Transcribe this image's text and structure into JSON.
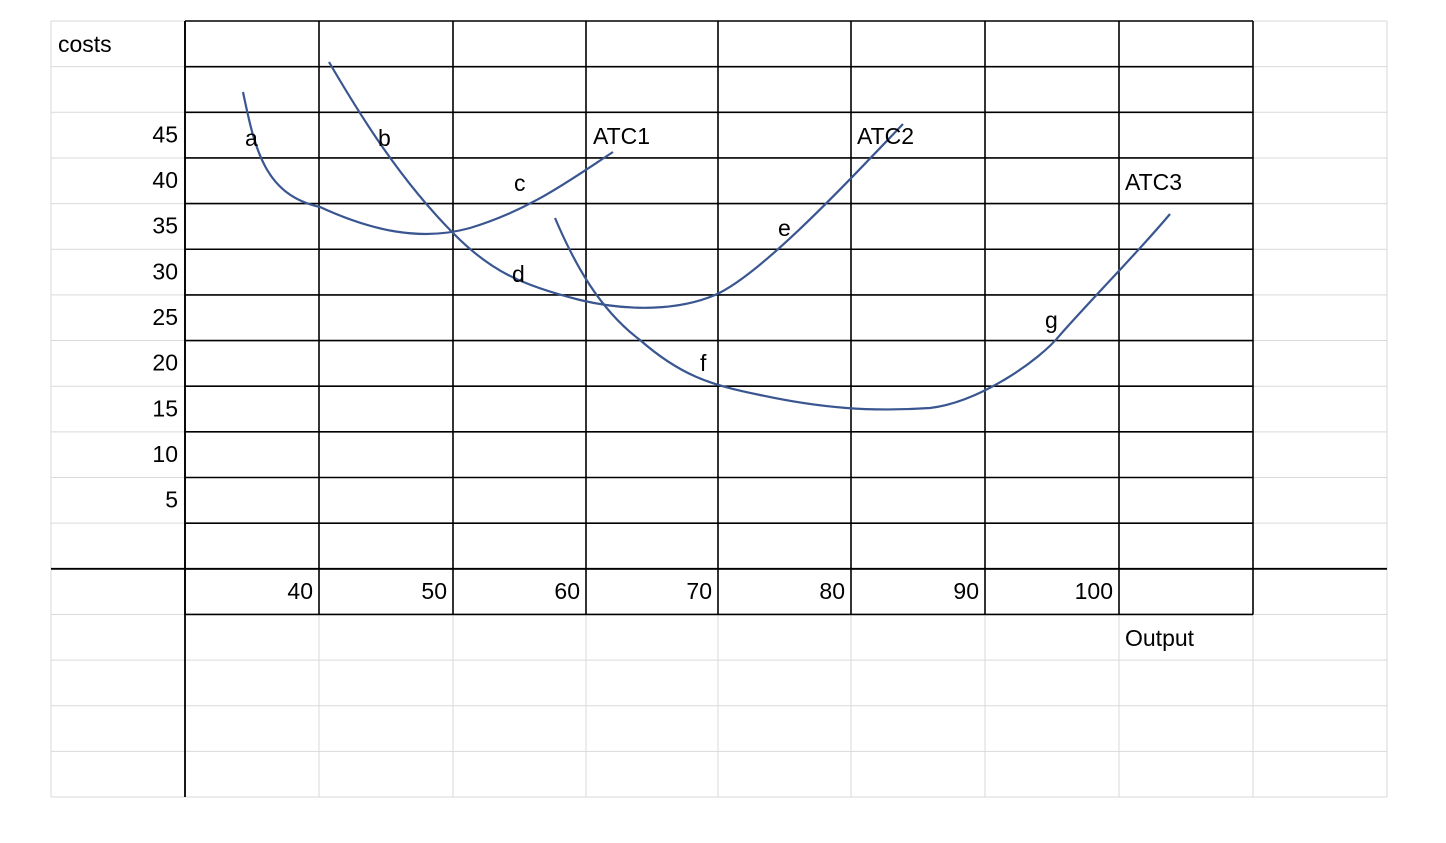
{
  "header": {
    "y_axis_label": "costs",
    "x_axis_label": "Output"
  },
  "y_labels": [
    45,
    40,
    35,
    30,
    25,
    20,
    15,
    10,
    5
  ],
  "x_labels": [
    40,
    50,
    60,
    70,
    80,
    90,
    100
  ],
  "curve_labels": [
    "ATC1",
    "ATC2",
    "ATC3"
  ],
  "point_labels": [
    "a",
    "b",
    "c",
    "d",
    "e",
    "f",
    "g"
  ]
}
